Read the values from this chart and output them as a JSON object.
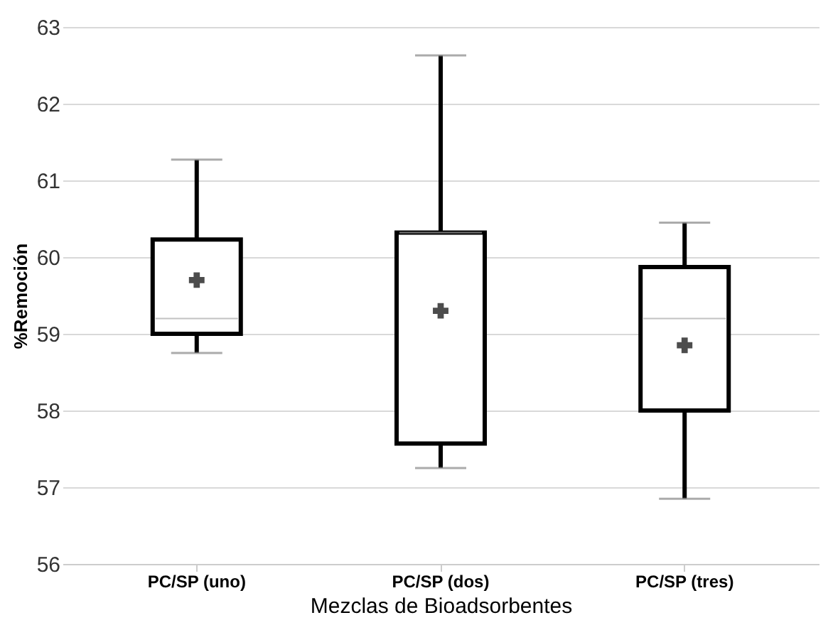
{
  "chart_data": {
    "type": "box",
    "xlabel": "Mezclas de Bioadsorbentes",
    "ylabel": "%Remoción",
    "categories": [
      "PC/SP (uno)",
      "PC/SP (dos)",
      "PC/SP (tres)"
    ],
    "boxes": [
      {
        "low": 58.75,
        "q1": 59.0,
        "median": 59.2,
        "q3": 60.23,
        "high": 61.27,
        "mean": 59.7
      },
      {
        "low": 57.25,
        "q1": 57.57,
        "median": 60.32,
        "q3": 60.32,
        "high": 62.63,
        "mean": 59.3
      },
      {
        "low": 56.85,
        "q1": 58.0,
        "median": 59.2,
        "q3": 59.87,
        "high": 60.45,
        "mean": 58.85
      }
    ],
    "color": "#000000",
    "ylim": [
      56,
      63
    ],
    "yticks": [
      56,
      57,
      58,
      59,
      60,
      61,
      62,
      63
    ],
    "grid": "y",
    "marker": "cross"
  }
}
